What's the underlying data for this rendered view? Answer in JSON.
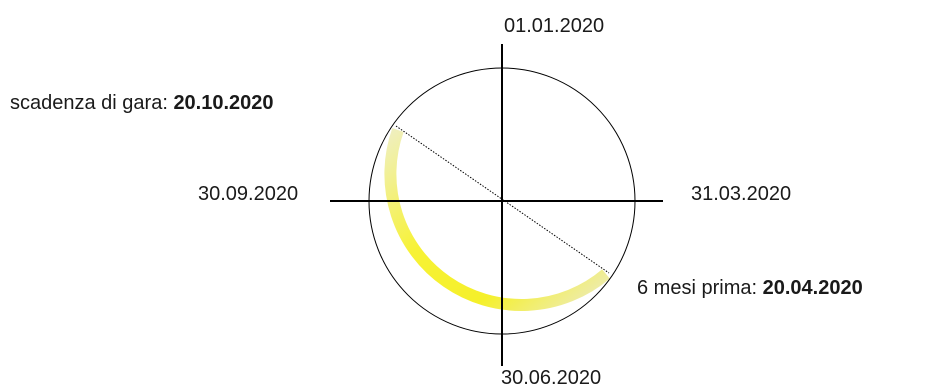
{
  "axis_labels": {
    "top": "01.01.2020",
    "right": "31.03.2020",
    "bottom": "30.06.2020",
    "left": "30.09.2020"
  },
  "annotations": {
    "deadline": {
      "prefix": "scadenza di gara: ",
      "date": "20.10.2020"
    },
    "six_months_before": {
      "prefix": "6 mesi prima: ",
      "date": "20.04.2020"
    }
  },
  "colors": {
    "highlight_arc": "#f5f02a",
    "highlight_fade": "#efefc8",
    "circle": "#000000",
    "axes": "#000000"
  }
}
